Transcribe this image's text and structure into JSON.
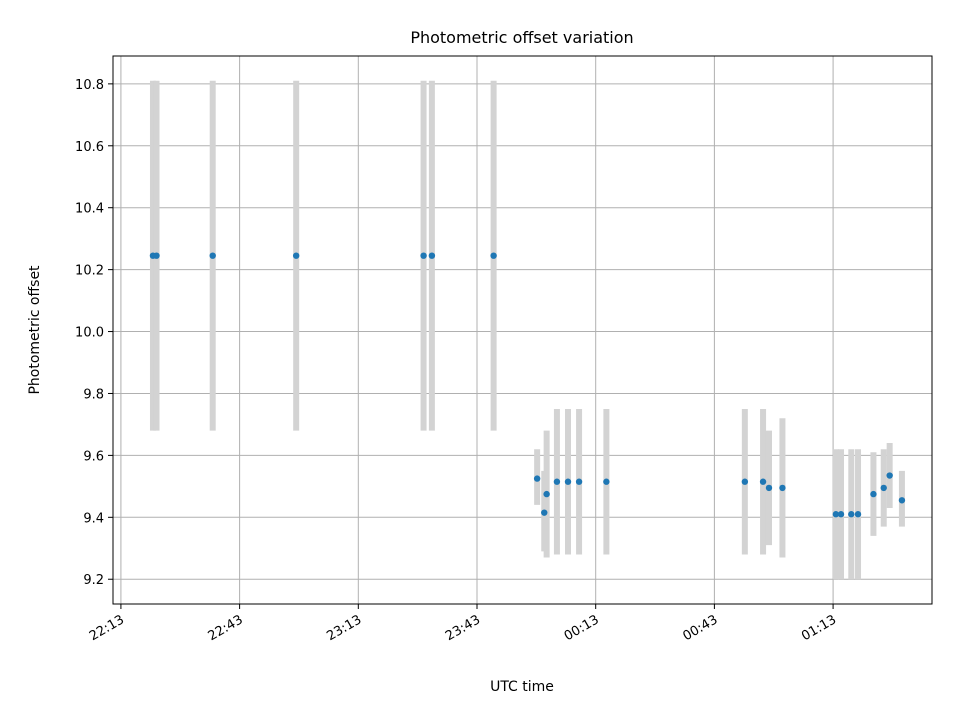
{
  "chart_data": {
    "type": "scatter",
    "title": "Photometric offset variation",
    "xlabel": "UTC time",
    "ylabel": "Photometric offset",
    "grid": true,
    "x_axis": {
      "unit": "minutes since 22:13 UTC",
      "lim": [
        -2,
        205
      ],
      "ticks": [
        {
          "value": 0,
          "label": "22:13"
        },
        {
          "value": 30,
          "label": "22:43"
        },
        {
          "value": 60,
          "label": "23:13"
        },
        {
          "value": 90,
          "label": "23:43"
        },
        {
          "value": 120,
          "label": "00:13"
        },
        {
          "value": 150,
          "label": "00:43"
        },
        {
          "value": 180,
          "label": "01:13"
        }
      ]
    },
    "y_axis": {
      "lim": [
        9.12,
        10.89
      ],
      "ticks": [
        {
          "value": 9.2,
          "label": "9.2"
        },
        {
          "value": 9.4,
          "label": "9.4"
        },
        {
          "value": 9.6,
          "label": "9.6"
        },
        {
          "value": 9.8,
          "label": "9.8"
        },
        {
          "value": 10.0,
          "label": "10.0"
        },
        {
          "value": 10.2,
          "label": "10.2"
        },
        {
          "value": 10.4,
          "label": "10.4"
        },
        {
          "value": 10.6,
          "label": "10.6"
        },
        {
          "value": 10.8,
          "label": "10.8"
        }
      ]
    },
    "colors": {
      "point": "#1f77b4",
      "errorbar": "#d3d3d3",
      "grid": "#b0b0b0"
    },
    "points": [
      {
        "x": 8.1,
        "y": 10.245,
        "ylo": 9.68,
        "yhi": 10.81
      },
      {
        "x": 9.0,
        "y": 10.245,
        "ylo": 9.68,
        "yhi": 10.81
      },
      {
        "x": 23.2,
        "y": 10.245,
        "ylo": 9.68,
        "yhi": 10.81
      },
      {
        "x": 44.3,
        "y": 10.245,
        "ylo": 9.68,
        "yhi": 10.81
      },
      {
        "x": 76.5,
        "y": 10.245,
        "ylo": 9.68,
        "yhi": 10.81
      },
      {
        "x": 78.6,
        "y": 10.245,
        "ylo": 9.68,
        "yhi": 10.81
      },
      {
        "x": 94.2,
        "y": 10.245,
        "ylo": 9.68,
        "yhi": 10.81
      },
      {
        "x": 105.2,
        "y": 9.525,
        "ylo": 9.44,
        "yhi": 9.62
      },
      {
        "x": 107.0,
        "y": 9.415,
        "ylo": 9.29,
        "yhi": 9.55
      },
      {
        "x": 107.6,
        "y": 9.475,
        "ylo": 9.27,
        "yhi": 9.68
      },
      {
        "x": 110.2,
        "y": 9.515,
        "ylo": 9.28,
        "yhi": 9.75
      },
      {
        "x": 113.0,
        "y": 9.515,
        "ylo": 9.28,
        "yhi": 9.75
      },
      {
        "x": 115.8,
        "y": 9.515,
        "ylo": 9.28,
        "yhi": 9.75
      },
      {
        "x": 122.7,
        "y": 9.515,
        "ylo": 9.28,
        "yhi": 9.75
      },
      {
        "x": 157.7,
        "y": 9.515,
        "ylo": 9.28,
        "yhi": 9.75
      },
      {
        "x": 162.3,
        "y": 9.515,
        "ylo": 9.28,
        "yhi": 9.75
      },
      {
        "x": 163.8,
        "y": 9.495,
        "ylo": 9.31,
        "yhi": 9.68
      },
      {
        "x": 167.2,
        "y": 9.495,
        "ylo": 9.27,
        "yhi": 9.72
      },
      {
        "x": 180.7,
        "y": 9.41,
        "ylo": 9.2,
        "yhi": 9.62
      },
      {
        "x": 182.0,
        "y": 9.41,
        "ylo": 9.2,
        "yhi": 9.62
      },
      {
        "x": 184.6,
        "y": 9.41,
        "ylo": 9.2,
        "yhi": 9.62
      },
      {
        "x": 186.3,
        "y": 9.41,
        "ylo": 9.2,
        "yhi": 9.62
      },
      {
        "x": 190.2,
        "y": 9.475,
        "ylo": 9.34,
        "yhi": 9.61
      },
      {
        "x": 192.8,
        "y": 9.495,
        "ylo": 9.37,
        "yhi": 9.62
      },
      {
        "x": 194.3,
        "y": 9.535,
        "ylo": 9.43,
        "yhi": 9.64
      },
      {
        "x": 197.4,
        "y": 9.455,
        "ylo": 9.37,
        "yhi": 9.55
      }
    ]
  }
}
